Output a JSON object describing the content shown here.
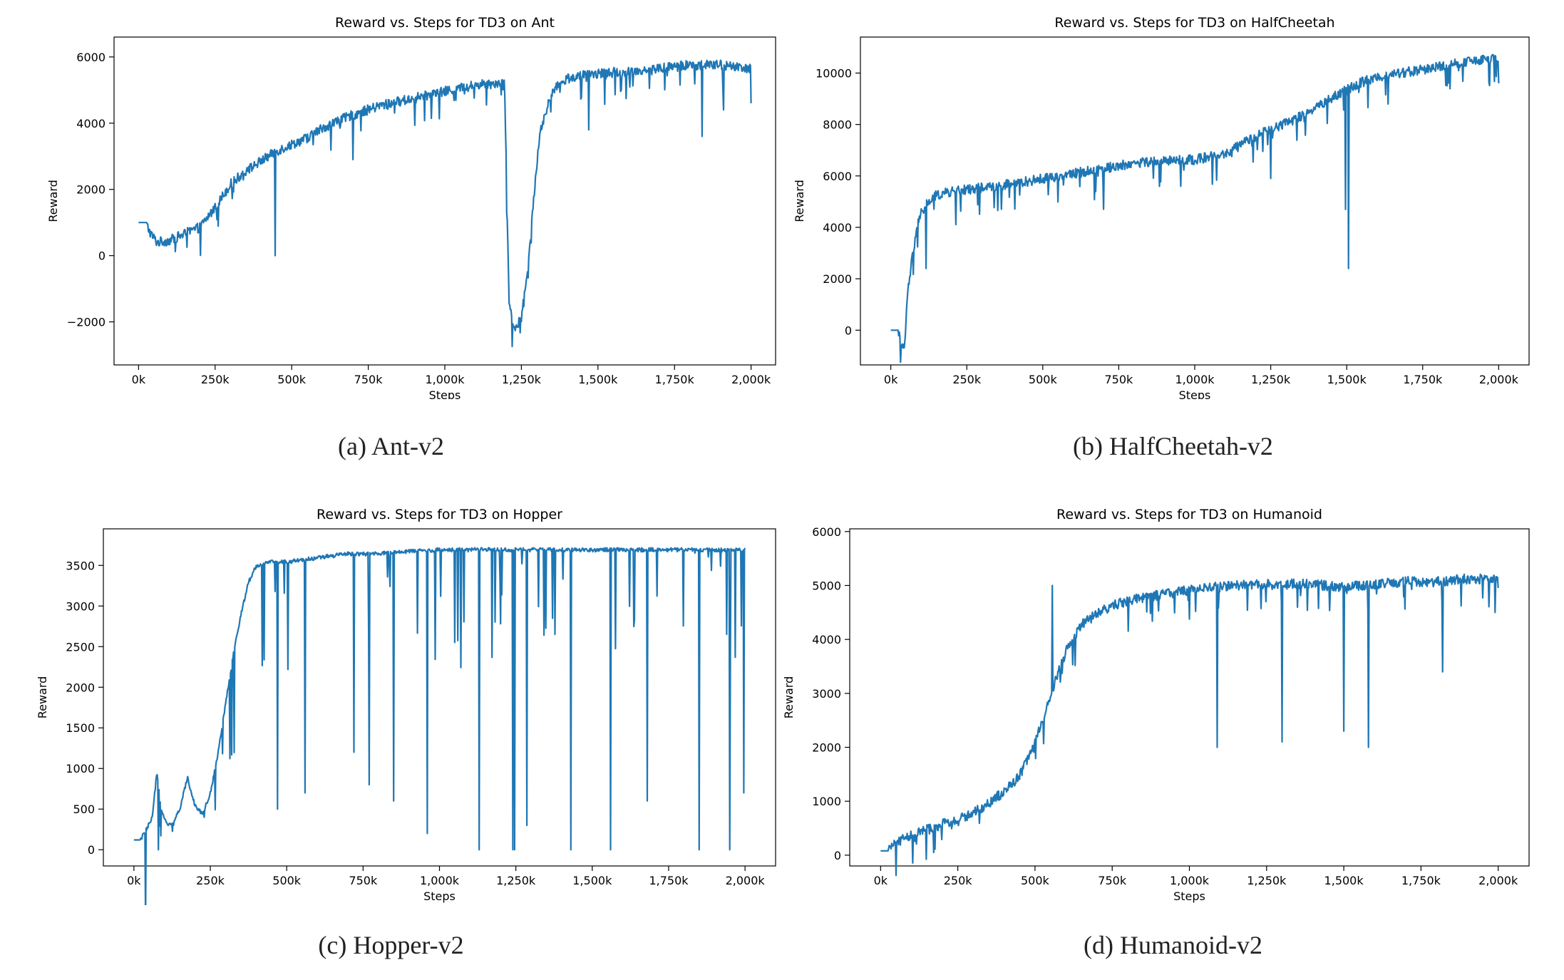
{
  "chart_data": [
    {
      "type": "line",
      "title": "Reward vs. Steps for TD3 on Ant",
      "xlabel": "Steps",
      "ylabel": "Reward",
      "caption": "(a)  Ant-v2",
      "xlim": [
        -80,
        2080
      ],
      "ylim": [
        -3300,
        6600
      ],
      "xticks": [
        0,
        250,
        500,
        750,
        1000,
        1250,
        1500,
        1750,
        2000
      ],
      "xtick_labels": [
        "0k",
        "250k",
        "500k",
        "750k",
        "1,000k",
        "1,250k",
        "1,500k",
        "1,750k",
        "2,000k"
      ],
      "yticks": [
        -2000,
        0,
        2000,
        4000,
        6000
      ],
      "ytick_labels": [
        "−2000",
        "0",
        "2000",
        "4000",
        "6000"
      ],
      "series": [
        {
          "color": "#1f77b4",
          "x": [
            0,
            25,
            40,
            60,
            100,
            150,
            200,
            250,
            300,
            350,
            400,
            450,
            500,
            550,
            600,
            700,
            800,
            900,
            1000,
            1100,
            1150,
            1195,
            1210,
            1230,
            1250,
            1270,
            1290,
            1310,
            1350,
            1400,
            1500,
            1600,
            1700,
            1800,
            1900,
            2000
          ],
          "y": [
            1000,
            1000,
            700,
            450,
            500,
            700,
            900,
            1500,
            2200,
            2600,
            2900,
            3200,
            3400,
            3600,
            3900,
            4300,
            4600,
            4800,
            5000,
            5200,
            5250,
            5300,
            -1500,
            -2200,
            -1800,
            -500,
            1800,
            3700,
            5000,
            5400,
            5550,
            5600,
            5700,
            5800,
            5800,
            5700
          ],
          "spikes": [
            [
              445,
              0
            ],
            [
              700,
              2900
            ],
            [
              1470,
              3800
            ],
            [
              1840,
              3600
            ],
            [
              1910,
              4400
            ],
            [
              2000,
              4600
            ]
          ]
        }
      ]
    },
    {
      "type": "line",
      "title": "Reward vs. Steps for TD3 on HalfCheetah",
      "xlabel": "Steps",
      "ylabel": "Reward",
      "caption": "(b)  HalfCheetah-v2",
      "xlim": [
        -100,
        2100
      ],
      "ylim": [
        -1350,
        11400
      ],
      "xticks": [
        0,
        250,
        500,
        750,
        1000,
        1250,
        1500,
        1750,
        2000
      ],
      "xtick_labels": [
        "0k",
        "250k",
        "500k",
        "750k",
        "1,000k",
        "1,250k",
        "1,500k",
        "1,750k",
        "2,000k"
      ],
      "yticks": [
        0,
        2000,
        4000,
        6000,
        8000,
        10000
      ],
      "ytick_labels": [
        "0",
        "2000",
        "4000",
        "6000",
        "8000",
        "10000"
      ],
      "series": [
        {
          "color": "#1f77b4",
          "x": [
            0,
            25,
            35,
            45,
            55,
            70,
            85,
            100,
            120,
            150,
            200,
            300,
            400,
            500,
            600,
            700,
            800,
            900,
            1000,
            1100,
            1200,
            1300,
            1400,
            1450,
            1500,
            1550,
            1600,
            1700,
            1800,
            1900,
            2000
          ],
          "y": [
            0,
            0,
            -600,
            -700,
            1500,
            2800,
            4000,
            4600,
            5000,
            5300,
            5450,
            5600,
            5750,
            5950,
            6150,
            6350,
            6550,
            6650,
            6700,
            6900,
            7600,
            8100,
            8700,
            9100,
            9400,
            9700,
            9900,
            10100,
            10300,
            10500,
            10600
          ],
          "spikes": [
            [
              115,
              2400
            ],
            [
              700,
              4700
            ],
            [
              1250,
              5900
            ],
            [
              1495,
              4700
            ],
            [
              1505,
              2400
            ],
            [
              2000,
              9600
            ]
          ]
        }
      ]
    },
    {
      "type": "line",
      "title": "Reward vs. Steps for TD3 on Hopper",
      "xlabel": "Steps",
      "ylabel": "Reward",
      "caption": "(c)  Hopper-v2",
      "xlim": [
        -100,
        2100
      ],
      "ylim": [
        -200,
        3950
      ],
      "xticks": [
        0,
        250,
        500,
        750,
        1000,
        1250,
        1500,
        1750,
        2000
      ],
      "xtick_labels": [
        "0k",
        "250k",
        "500k",
        "750k",
        "1,000k",
        "1,250k",
        "1,500k",
        "1,750k",
        "2,000k"
      ],
      "yticks": [
        0,
        500,
        1000,
        1500,
        2000,
        2500,
        3000,
        3500
      ],
      "ytick_labels": [
        "0",
        "500",
        "1000",
        "1500",
        "2000",
        "2500",
        "3000",
        "3500"
      ],
      "series": [
        {
          "color": "#1f77b4",
          "x": [
            0,
            20,
            40,
            60,
            75,
            90,
            110,
            130,
            150,
            175,
            200,
            225,
            250,
            275,
            300,
            325,
            350,
            375,
            400,
            450,
            500,
            600,
            700,
            800,
            900,
            1000,
            1200,
            1400,
            1600,
            1800,
            2000
          ],
          "y": [
            120,
            120,
            250,
            400,
            950,
            500,
            300,
            350,
            500,
            900,
            550,
            450,
            700,
            1200,
            1800,
            2400,
            2900,
            3300,
            3500,
            3550,
            3550,
            3600,
            3650,
            3650,
            3680,
            3700,
            3700,
            3700,
            3700,
            3700,
            3700
          ],
          "spikes": [
            [
              80,
              0
            ],
            [
              230,
              400
            ],
            [
              470,
              500
            ],
            [
              560,
              700
            ],
            [
              720,
              1200
            ],
            [
              770,
              800
            ],
            [
              850,
              600
            ],
            [
              960,
              200
            ],
            [
              1130,
              0
            ],
            [
              1240,
              0
            ],
            [
              1245,
              0
            ],
            [
              1285,
              300
            ],
            [
              1430,
              0
            ],
            [
              1560,
              0
            ],
            [
              1680,
              600
            ],
            [
              1850,
              0
            ],
            [
              1950,
              0
            ],
            [
              1995,
              700
            ]
          ]
        }
      ]
    },
    {
      "type": "line",
      "title": "Reward vs. Steps for TD3 on Humanoid",
      "xlabel": "Steps",
      "ylabel": "Reward",
      "caption": "(d)  Humanoid-v2",
      "xlim": [
        -100,
        2100
      ],
      "ylim": [
        -200,
        6050
      ],
      "xticks": [
        0,
        250,
        500,
        750,
        1000,
        1250,
        1500,
        1750,
        2000
      ],
      "xtick_labels": [
        "0k",
        "250k",
        "500k",
        "750k",
        "1,000k",
        "1,250k",
        "1,500k",
        "1,750k",
        "2,000k"
      ],
      "yticks": [
        0,
        1000,
        2000,
        3000,
        4000,
        5000,
        6000
      ],
      "ytick_labels": [
        "0",
        "1000",
        "2000",
        "3000",
        "4000",
        "5000",
        "6000"
      ],
      "series": [
        {
          "color": "#1f77b4",
          "x": [
            0,
            25,
            40,
            100,
            200,
            300,
            400,
            450,
            500,
            550,
            600,
            650,
            700,
            750,
            800,
            900,
            1000,
            1100,
            1200,
            1300,
            1400,
            1500,
            1600,
            1700,
            1800,
            1900,
            2000
          ],
          "y": [
            80,
            80,
            250,
            400,
            600,
            800,
            1200,
            1500,
            2100,
            3000,
            3800,
            4300,
            4500,
            4650,
            4750,
            4850,
            4950,
            5000,
            5050,
            5050,
            5050,
            5000,
            5050,
            5100,
            5100,
            5150,
            5150
          ],
          "spikes": [
            [
              555,
              5000
            ],
            [
              1090,
              2000
            ],
            [
              1300,
              2100
            ],
            [
              1500,
              2300
            ],
            [
              1580,
              2000
            ],
            [
              1820,
              3400
            ],
            [
              1990,
              4500
            ]
          ]
        }
      ]
    }
  ]
}
